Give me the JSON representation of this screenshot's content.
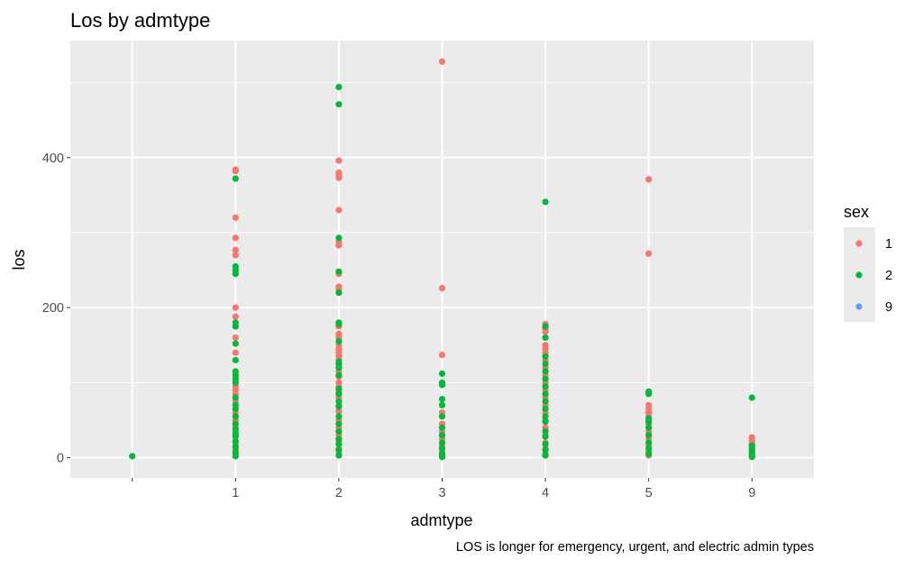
{
  "chart_data": {
    "type": "scatter",
    "title": "Los by admtype",
    "xlabel": "admtype",
    "ylabel": "los",
    "caption": "LOS is longer for emergency, urgent, and electric admin types",
    "categories": [
      "",
      "1",
      "2",
      "3",
      "4",
      "5",
      "9"
    ],
    "y_ticks": [
      0,
      200,
      400
    ],
    "ylim": [
      -27,
      556
    ],
    "grid": true,
    "legend": {
      "title": "sex",
      "placement": "right",
      "entries": [
        "1",
        "2",
        "9"
      ]
    },
    "colors": {
      "1": "#F8766D",
      "2": "#00BA38",
      "9": "#619CFF"
    },
    "series": [
      {
        "name": "1",
        "points": [
          {
            "x": "1",
            "y": 384
          },
          {
            "x": "1",
            "y": 382
          },
          {
            "x": "1",
            "y": 320
          },
          {
            "x": "1",
            "y": 293
          },
          {
            "x": "1",
            "y": 277
          },
          {
            "x": "1",
            "y": 270
          },
          {
            "x": "1",
            "y": 200
          },
          {
            "x": "1",
            "y": 188
          },
          {
            "x": "1",
            "y": 175
          },
          {
            "x": "1",
            "y": 160
          },
          {
            "x": "1",
            "y": 140
          },
          {
            "x": "1",
            "y": 95
          },
          {
            "x": "1",
            "y": 90
          },
          {
            "x": "1",
            "y": 85
          },
          {
            "x": "1",
            "y": 75
          },
          {
            "x": "1",
            "y": 60
          },
          {
            "x": "1",
            "y": 50
          },
          {
            "x": "1",
            "y": 40
          },
          {
            "x": "1",
            "y": 30
          },
          {
            "x": "1",
            "y": 20
          },
          {
            "x": "1",
            "y": 12
          },
          {
            "x": "1",
            "y": 5
          },
          {
            "x": "2",
            "y": 396
          },
          {
            "x": "2",
            "y": 380
          },
          {
            "x": "2",
            "y": 376
          },
          {
            "x": "2",
            "y": 373
          },
          {
            "x": "2",
            "y": 330
          },
          {
            "x": "2",
            "y": 288
          },
          {
            "x": "2",
            "y": 283
          },
          {
            "x": "2",
            "y": 245
          },
          {
            "x": "2",
            "y": 228
          },
          {
            "x": "2",
            "y": 225
          },
          {
            "x": "2",
            "y": 175
          },
          {
            "x": "2",
            "y": 165
          },
          {
            "x": "2",
            "y": 160
          },
          {
            "x": "2",
            "y": 150
          },
          {
            "x": "2",
            "y": 145
          },
          {
            "x": "2",
            "y": 140
          },
          {
            "x": "2",
            "y": 135
          },
          {
            "x": "2",
            "y": 130
          },
          {
            "x": "2",
            "y": 115
          },
          {
            "x": "2",
            "y": 108
          },
          {
            "x": "2",
            "y": 100
          },
          {
            "x": "2",
            "y": 95
          },
          {
            "x": "2",
            "y": 88
          },
          {
            "x": "2",
            "y": 80
          },
          {
            "x": "2",
            "y": 70
          },
          {
            "x": "2",
            "y": 62
          },
          {
            "x": "2",
            "y": 50
          },
          {
            "x": "2",
            "y": 40
          },
          {
            "x": "2",
            "y": 30
          },
          {
            "x": "2",
            "y": 22
          },
          {
            "x": "2",
            "y": 12
          },
          {
            "x": "2",
            "y": 5
          },
          {
            "x": "3",
            "y": 528
          },
          {
            "x": "3",
            "y": 226
          },
          {
            "x": "3",
            "y": 137
          },
          {
            "x": "3",
            "y": 60
          },
          {
            "x": "3",
            "y": 45
          },
          {
            "x": "3",
            "y": 35
          },
          {
            "x": "3",
            "y": 25
          },
          {
            "x": "3",
            "y": 15
          },
          {
            "x": "3",
            "y": 8
          },
          {
            "x": "3",
            "y": 3
          },
          {
            "x": "4",
            "y": 178
          },
          {
            "x": "4",
            "y": 172
          },
          {
            "x": "4",
            "y": 168
          },
          {
            "x": "4",
            "y": 150
          },
          {
            "x": "4",
            "y": 145
          },
          {
            "x": "4",
            "y": 140
          },
          {
            "x": "4",
            "y": 130
          },
          {
            "x": "4",
            "y": 120
          },
          {
            "x": "4",
            "y": 110
          },
          {
            "x": "4",
            "y": 100
          },
          {
            "x": "4",
            "y": 90
          },
          {
            "x": "4",
            "y": 80
          },
          {
            "x": "4",
            "y": 70
          },
          {
            "x": "4",
            "y": 60
          },
          {
            "x": "4",
            "y": 50
          },
          {
            "x": "4",
            "y": 40
          },
          {
            "x": "4",
            "y": 30
          },
          {
            "x": "4",
            "y": 20
          },
          {
            "x": "4",
            "y": 12
          },
          {
            "x": "4",
            "y": 5
          },
          {
            "x": "5",
            "y": 371
          },
          {
            "x": "5",
            "y": 272
          },
          {
            "x": "5",
            "y": 70
          },
          {
            "x": "5",
            "y": 65
          },
          {
            "x": "5",
            "y": 60
          },
          {
            "x": "5",
            "y": 55
          },
          {
            "x": "5",
            "y": 45
          },
          {
            "x": "5",
            "y": 35
          },
          {
            "x": "5",
            "y": 25
          },
          {
            "x": "5",
            "y": 15
          },
          {
            "x": "5",
            "y": 8
          },
          {
            "x": "5",
            "y": 3
          },
          {
            "x": "9",
            "y": 27
          },
          {
            "x": "9",
            "y": 22
          },
          {
            "x": "9",
            "y": 18
          },
          {
            "x": "9",
            "y": 14
          },
          {
            "x": "9",
            "y": 10
          },
          {
            "x": "9",
            "y": 6
          },
          {
            "x": "9",
            "y": 3
          }
        ]
      },
      {
        "name": "2",
        "points": [
          {
            "x": "",
            "y": 2
          },
          {
            "x": "1",
            "y": 372
          },
          {
            "x": "1",
            "y": 255
          },
          {
            "x": "1",
            "y": 250
          },
          {
            "x": "1",
            "y": 245
          },
          {
            "x": "1",
            "y": 180
          },
          {
            "x": "1",
            "y": 175
          },
          {
            "x": "1",
            "y": 152
          },
          {
            "x": "1",
            "y": 130
          },
          {
            "x": "1",
            "y": 115
          },
          {
            "x": "1",
            "y": 110
          },
          {
            "x": "1",
            "y": 105
          },
          {
            "x": "1",
            "y": 100
          },
          {
            "x": "1",
            "y": 80
          },
          {
            "x": "1",
            "y": 70
          },
          {
            "x": "1",
            "y": 65
          },
          {
            "x": "1",
            "y": 55
          },
          {
            "x": "1",
            "y": 45
          },
          {
            "x": "1",
            "y": 38
          },
          {
            "x": "1",
            "y": 33
          },
          {
            "x": "1",
            "y": 28
          },
          {
            "x": "1",
            "y": 22
          },
          {
            "x": "1",
            "y": 15
          },
          {
            "x": "1",
            "y": 8
          },
          {
            "x": "1",
            "y": 2
          },
          {
            "x": "2",
            "y": 494
          },
          {
            "x": "2",
            "y": 471
          },
          {
            "x": "2",
            "y": 293
          },
          {
            "x": "2",
            "y": 248
          },
          {
            "x": "2",
            "y": 220
          },
          {
            "x": "2",
            "y": 180
          },
          {
            "x": "2",
            "y": 178
          },
          {
            "x": "2",
            "y": 155
          },
          {
            "x": "2",
            "y": 128
          },
          {
            "x": "2",
            "y": 125
          },
          {
            "x": "2",
            "y": 120
          },
          {
            "x": "2",
            "y": 110
          },
          {
            "x": "2",
            "y": 92
          },
          {
            "x": "2",
            "y": 85
          },
          {
            "x": "2",
            "y": 75
          },
          {
            "x": "2",
            "y": 68
          },
          {
            "x": "2",
            "y": 55
          },
          {
            "x": "2",
            "y": 45
          },
          {
            "x": "2",
            "y": 35
          },
          {
            "x": "2",
            "y": 25
          },
          {
            "x": "2",
            "y": 18
          },
          {
            "x": "2",
            "y": 10
          },
          {
            "x": "2",
            "y": 3
          },
          {
            "x": "3",
            "y": 112
          },
          {
            "x": "3",
            "y": 100
          },
          {
            "x": "3",
            "y": 97
          },
          {
            "x": "3",
            "y": 78
          },
          {
            "x": "3",
            "y": 70
          },
          {
            "x": "3",
            "y": 55
          },
          {
            "x": "3",
            "y": 40
          },
          {
            "x": "3",
            "y": 30
          },
          {
            "x": "3",
            "y": 20
          },
          {
            "x": "3",
            "y": 12
          },
          {
            "x": "3",
            "y": 5
          },
          {
            "x": "3",
            "y": 1
          },
          {
            "x": "4",
            "y": 341
          },
          {
            "x": "4",
            "y": 175
          },
          {
            "x": "4",
            "y": 160
          },
          {
            "x": "4",
            "y": 135
          },
          {
            "x": "4",
            "y": 125
          },
          {
            "x": "4",
            "y": 115
          },
          {
            "x": "4",
            "y": 105
          },
          {
            "x": "4",
            "y": 95
          },
          {
            "x": "4",
            "y": 85
          },
          {
            "x": "4",
            "y": 75
          },
          {
            "x": "4",
            "y": 65
          },
          {
            "x": "4",
            "y": 55
          },
          {
            "x": "4",
            "y": 48
          },
          {
            "x": "4",
            "y": 35
          },
          {
            "x": "4",
            "y": 28
          },
          {
            "x": "4",
            "y": 18
          },
          {
            "x": "4",
            "y": 10
          },
          {
            "x": "4",
            "y": 3
          },
          {
            "x": "5",
            "y": 88
          },
          {
            "x": "5",
            "y": 85
          },
          {
            "x": "5",
            "y": 52
          },
          {
            "x": "5",
            "y": 48
          },
          {
            "x": "5",
            "y": 40
          },
          {
            "x": "5",
            "y": 30
          },
          {
            "x": "5",
            "y": 20
          },
          {
            "x": "5",
            "y": 12
          },
          {
            "x": "5",
            "y": 5
          },
          {
            "x": "9",
            "y": 80
          },
          {
            "x": "9",
            "y": 16
          },
          {
            "x": "9",
            "y": 12
          },
          {
            "x": "9",
            "y": 8
          },
          {
            "x": "9",
            "y": 4
          },
          {
            "x": "9",
            "y": 1
          }
        ]
      }
    ]
  }
}
